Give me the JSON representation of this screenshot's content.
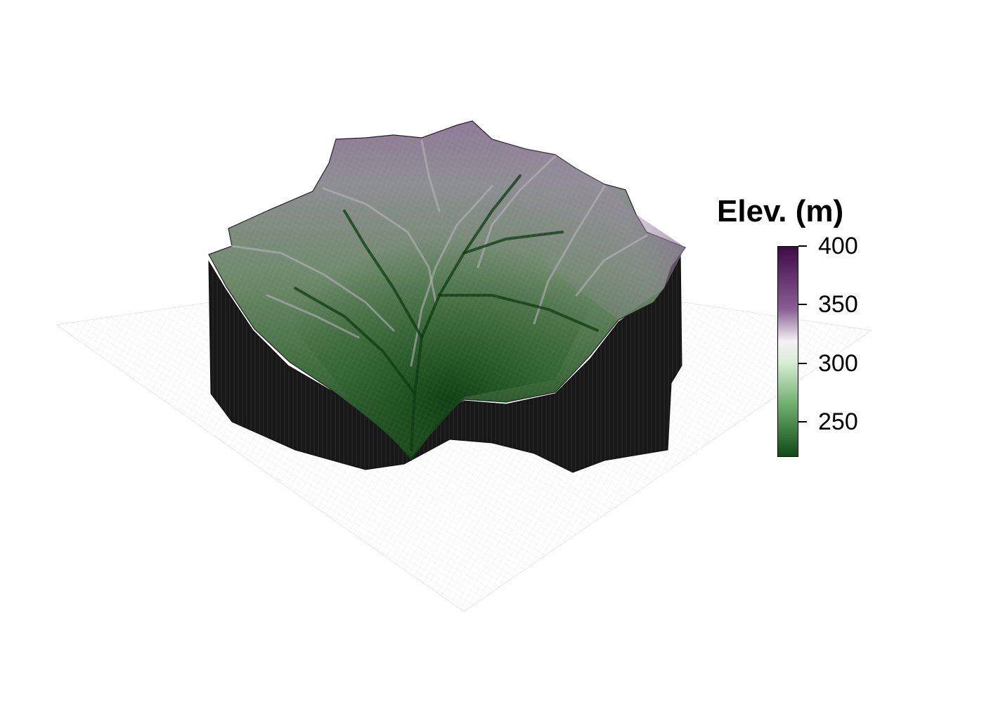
{
  "legend": {
    "title": "Elev. (m)",
    "ticks": [
      "400",
      "350",
      "300",
      "250"
    ],
    "tick_values": [
      400,
      350,
      300,
      250
    ],
    "range": [
      220,
      400
    ],
    "colors": {
      "high": "#3f0a47",
      "upper": "#8a5f95",
      "mid_light": "#f4f0f5",
      "pale_green": "#d9eed6",
      "mid_green": "#6fb06f",
      "low": "#0f4b16"
    }
  },
  "scene": {
    "surface_colors": {
      "valley": "#123d12",
      "slope": "#5c7d5a",
      "ridge": "#9a9aa0",
      "top_purple": "#8e7897",
      "walls": "#161616",
      "ground_grid": "#d6d6d6"
    }
  }
}
